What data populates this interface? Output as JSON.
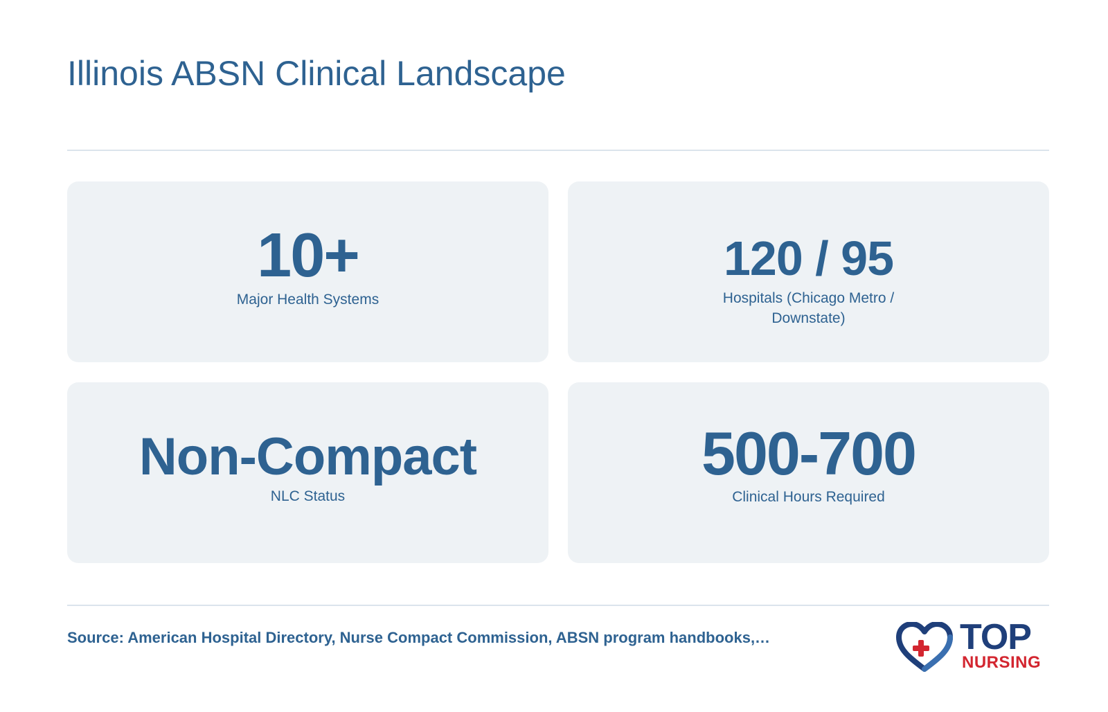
{
  "header": {
    "title": "Illinois ABSN Clinical Landscape"
  },
  "stats": [
    {
      "value": "10+",
      "label": "Major Health Systems"
    },
    {
      "value": "120 / 95",
      "label": "Hospitals (Chicago Metro / Downstate)"
    },
    {
      "value": "Non-Compact",
      "label": "NLC Status"
    },
    {
      "value": "500-700",
      "label": "Clinical Hours Required"
    }
  ],
  "footer": {
    "source": "Source: American Hospital Directory, Nurse Compact Commission, ABSN program handbooks,…",
    "logo": {
      "top": "TOP",
      "nursing": "NURSING",
      "icon": "heart-cross-icon"
    }
  },
  "colors": {
    "primary": "#2e6291",
    "card_bg": "#eef2f5",
    "rule": "#dbe4ec",
    "logo_navy": "#1f3f7a",
    "logo_red": "#d32630"
  }
}
